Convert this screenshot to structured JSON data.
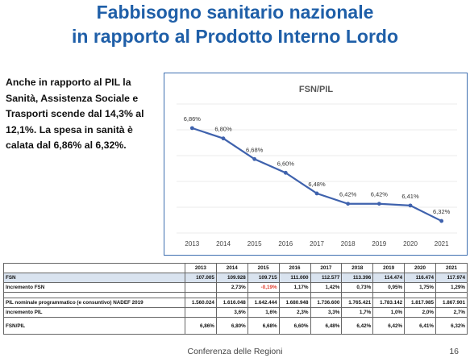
{
  "title": {
    "line1": "Fabbisogno sanitario nazionale",
    "line2": "in rapporto al Prodotto Interno Lordo"
  },
  "intro": "Anche in rapporto al PIL la Sanità, Assistenza Sociale e Trasporti scende dal 14,3% al 12,1%. La spesa in sanità è calata dal 6,86% al 6,32%.",
  "colors": {
    "title": "#1f5fa8",
    "line": "#3f62ad",
    "border": "#3f6fb0",
    "negative": "#e03c2c",
    "row_bg": "#d9e3ef"
  },
  "chart_data": {
    "type": "line",
    "title": "FSN/PIL",
    "categories": [
      "2013",
      "2014",
      "2015",
      "2016",
      "2017",
      "2018",
      "2019",
      "2020",
      "2021"
    ],
    "series": [
      {
        "values": [
          6.86,
          6.8,
          6.68,
          6.6,
          6.48,
          6.42,
          6.42,
          6.41,
          6.32
        ]
      }
    ],
    "value_labels": [
      "6,86%",
      "6,80%",
      "6,68%",
      "6,60%",
      "6,48%",
      "6,42%",
      "6,42%",
      "6,41%",
      "6,32%"
    ],
    "ylim": [
      6.25,
      7.0
    ],
    "grid": true
  },
  "table": {
    "years": [
      "2013",
      "2014",
      "2015",
      "2016",
      "2017",
      "2018",
      "2019",
      "2020",
      "2021"
    ],
    "rows": [
      {
        "label": "FSN",
        "values": [
          "107.005",
          "109.928",
          "109.715",
          "111.000",
          "112.577",
          "113.396",
          "114.474",
          "116.474",
          "117.974"
        ]
      },
      {
        "label": "Incremento FSN",
        "values": [
          "",
          "2,73%",
          "-0,19%",
          "1,17%",
          "1,42%",
          "0,73%",
          "0,95%",
          "1,75%",
          "1,29%"
        ]
      },
      {
        "label": "PIL nominale programmatico (e consuntivo) NADEF 2019",
        "values": [
          "1.560.024",
          "1.616.048",
          "1.642.444",
          "1.680.948",
          "1.736.600",
          "1.765.421",
          "1.783.142",
          "1.817.985",
          "1.867.901"
        ]
      },
      {
        "label": "incremento PIL",
        "values": [
          "",
          "3,6%",
          "1,6%",
          "2,3%",
          "3,3%",
          "1,7%",
          "1,0%",
          "2,0%",
          "2,7%"
        ]
      },
      {
        "label": "FSN/PIL",
        "values": [
          "6,86%",
          "6,80%",
          "6,68%",
          "6,60%",
          "6,48%",
          "6,42%",
          "6,42%",
          "6,41%",
          "6,32%"
        ]
      }
    ]
  },
  "footer": "Conferenza delle Regioni",
  "page_number": "16"
}
